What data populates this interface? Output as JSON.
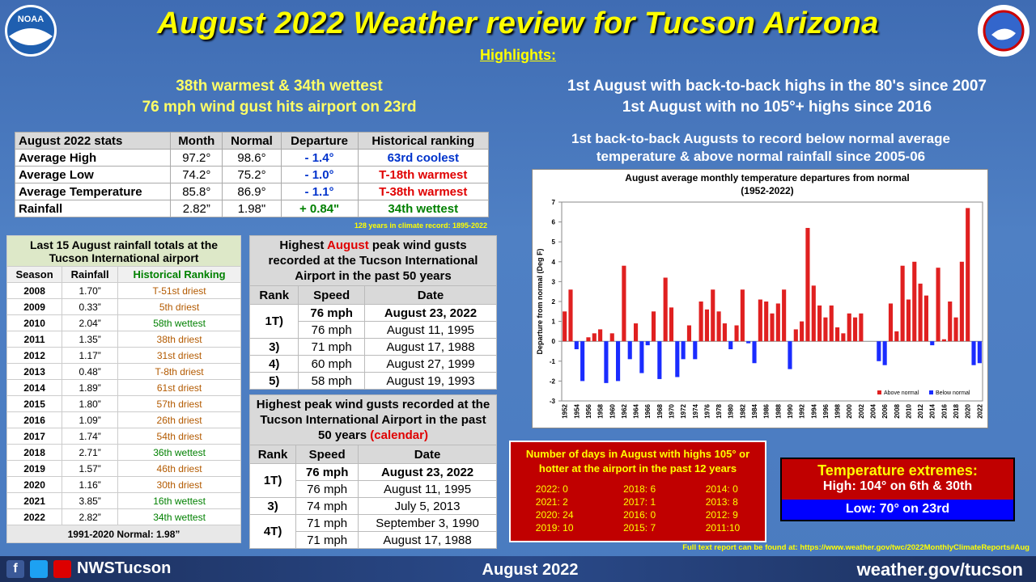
{
  "header": {
    "logo_left": "NOAA",
    "title": "August 2022 Weather review for Tucson Arizona",
    "subtitle": "Highlights:"
  },
  "highlights_left": [
    "38th warmest & 34th wettest",
    "76 mph wind gust hits airport on 23rd"
  ],
  "highlights_right": [
    "1st August with back-to-back highs in the 80's since 2007",
    "1st August with no 105°+ highs since 2016"
  ],
  "note": [
    "1st back-to-back Augusts to record below normal average",
    "temperature & above normal rainfall since 2005-06"
  ],
  "stats": {
    "header": [
      "August 2022 stats",
      "Month",
      "Normal",
      "Departure",
      "Historical ranking"
    ],
    "rows": [
      [
        "Average High",
        "97.2°",
        "98.6°",
        "- 1.4°",
        "63rd coolest"
      ],
      [
        "Average Low",
        "74.2°",
        "75.2°",
        "- 1.0°",
        "T-18th warmest"
      ],
      [
        "Average Temperature",
        "85.8°",
        "86.9°",
        "- 1.1°",
        "T-38th warmest"
      ],
      [
        "Rainfall",
        "2.82”",
        "1.98\"",
        "+ 0.84\"",
        "34th wettest"
      ]
    ],
    "footnote": "128 years in climate record: 1895-2022"
  },
  "rainfall": {
    "title": "Last 15 August rainfall totals at the Tucson International airport",
    "header": [
      "Season",
      "Rainfall",
      "Historical Ranking"
    ],
    "rows": [
      [
        "2008",
        "1.70”",
        "T-51st driest"
      ],
      [
        "2009",
        "0.33”",
        "5th driest"
      ],
      [
        "2010",
        "2.04”",
        "58th wettest"
      ],
      [
        "2011",
        "1.35”",
        "38th driest"
      ],
      [
        "2012",
        "1.17”",
        "31st driest"
      ],
      [
        "2013",
        "0.48”",
        "T-8th driest"
      ],
      [
        "2014",
        "1.89”",
        "61st driest"
      ],
      [
        "2015",
        "1.80”",
        "57th driest"
      ],
      [
        "2016",
        "1.09”",
        "26th driest"
      ],
      [
        "2017",
        "1.74”",
        "54th driest"
      ],
      [
        "2018",
        "2.71”",
        "36th wettest"
      ],
      [
        "2019",
        "1.57”",
        "46th driest"
      ],
      [
        "2020",
        "1.16”",
        "30th driest"
      ],
      [
        "2021",
        "3.85”",
        "16th wettest"
      ],
      [
        "2022",
        "2.82”",
        "34th wettest"
      ]
    ],
    "footer": "1991-2020  Normal: 1.98”"
  },
  "wind_august": {
    "title": [
      "Highest ",
      "August",
      " peak wind gusts recorded at the Tucson International Airport in the past 50 years"
    ],
    "header": [
      "Rank",
      "Speed",
      "Date"
    ],
    "groups": [
      {
        "rank": "1T)",
        "rows": [
          [
            "76 mph",
            "August 23, 2022"
          ],
          [
            "76 mph",
            "August 11, 1995"
          ]
        ]
      },
      {
        "rank": "3)",
        "rows": [
          [
            "71 mph",
            "August 17, 1988"
          ]
        ]
      },
      {
        "rank": "4)",
        "rows": [
          [
            "60 mph",
            "August 27, 1999"
          ]
        ]
      },
      {
        "rank": "5)",
        "rows": [
          [
            "58 mph",
            "August 19, 1993"
          ]
        ]
      }
    ]
  },
  "wind_calendar": {
    "title": [
      "Highest peak wind gusts recorded at the Tucson International Airport in the past 50 years ",
      "(calendar)"
    ],
    "header": [
      "Rank",
      "Speed",
      "Date"
    ],
    "groups": [
      {
        "rank": "1T)",
        "rows": [
          [
            "76 mph",
            "August 23, 2022"
          ],
          [
            "76 mph",
            "August 11, 1995"
          ]
        ]
      },
      {
        "rank": "3)",
        "rows": [
          [
            "74 mph",
            "July 5, 2013"
          ]
        ]
      },
      {
        "rank": "4T)",
        "rows": [
          [
            "71 mph",
            "September 3, 1990"
          ],
          [
            "71 mph",
            "August 17, 1988"
          ]
        ]
      }
    ]
  },
  "days_105": {
    "title": "Number of days in August with highs 105° or hotter at the airport in the past 12 years",
    "columns": [
      [
        "2022: 0",
        "2021: 2",
        "2020: 24",
        "2019: 10"
      ],
      [
        "2018: 6",
        "2017: 1",
        "2016: 0",
        "2015: 7"
      ],
      [
        "2014: 0",
        "2013: 8",
        "2012: 9",
        "2011:10"
      ]
    ]
  },
  "extremes": {
    "title": "Temperature extremes:",
    "high": "High: 104° on 6th & 30th",
    "low": "Low: 70° on 23rd"
  },
  "full_report": "Full text report can be found at: https://www.weather.gov/twc/2022MonthlyClimateReports#Aug",
  "footer": {
    "handle": "NWSTucson",
    "month": "August 2022",
    "site": "weather.gov/tucson"
  },
  "chart_data": {
    "type": "bar",
    "title": "August average monthly temperature departures from normal",
    "subtitle": "(1952-2022)",
    "ylabel": "Departure from normal (Deg F)",
    "categories": [
      "1952",
      null,
      "1954",
      null,
      "1956",
      null,
      "1958",
      null,
      "1960",
      null,
      "1962",
      null,
      "1964",
      null,
      "1966",
      null,
      "1968",
      null,
      "1970",
      null,
      "1972",
      null,
      "1974",
      null,
      "1976",
      null,
      "1978",
      null,
      "1980",
      null,
      "1982",
      null,
      "1984",
      null,
      "1986",
      null,
      "1988",
      null,
      "1990",
      null,
      "1992",
      null,
      "1994",
      null,
      "1996",
      null,
      "1998",
      null,
      "2000",
      null,
      "2002",
      null,
      "2004",
      null,
      "2006",
      null,
      "2008",
      null,
      "2010",
      null,
      "2012",
      null,
      "2014",
      null,
      "2016",
      null,
      "2018",
      null,
      "2020",
      null,
      "2022"
    ],
    "series": [
      {
        "name": "Above normal",
        "color": "#e02020",
        "values": [
          1.5,
          2.6,
          null,
          null,
          0.2,
          0.4,
          0.6,
          null,
          0.4,
          null,
          3.8,
          null,
          0.9,
          null,
          null,
          1.5,
          null,
          3.2,
          1.7,
          null,
          null,
          0.8,
          null,
          2.0,
          1.6,
          2.6,
          1.5,
          0.9,
          null,
          0.8,
          2.6,
          null,
          null,
          2.1,
          2.0,
          1.4,
          1.9,
          2.6,
          null,
          0.6,
          1.0,
          5.7,
          2.8,
          1.8,
          1.2,
          1.8,
          0.7,
          0.4,
          1.4,
          1.2,
          1.4,
          0,
          0,
          null,
          null,
          1.9,
          0.5,
          3.8,
          2.1,
          4.0,
          2.9,
          2.3,
          null,
          3.7,
          0.1,
          2.0,
          1.2,
          4.0,
          6.7,
          null,
          null
        ]
      },
      {
        "name": "Below normal",
        "color": "#1a2cff",
        "values": [
          null,
          null,
          -0.4,
          -2.0,
          null,
          null,
          null,
          -2.1,
          null,
          -2.0,
          null,
          -0.9,
          null,
          -1.6,
          -0.2,
          null,
          -1.9,
          null,
          null,
          -1.8,
          -0.9,
          null,
          -0.9,
          null,
          null,
          null,
          null,
          null,
          -0.4,
          null,
          null,
          -0.1,
          -1.1,
          null,
          null,
          null,
          null,
          null,
          -1.4,
          null,
          null,
          null,
          null,
          null,
          null,
          null,
          null,
          null,
          null,
          null,
          null,
          null,
          null,
          -1.0,
          -1.2,
          null,
          null,
          null,
          null,
          null,
          null,
          null,
          -0.2,
          null,
          null,
          null,
          null,
          null,
          null,
          -1.2,
          -1.1
        ]
      }
    ],
    "ylim": [
      -3,
      7
    ],
    "yticks": [
      -3,
      -2,
      -1,
      0,
      1,
      2,
      3,
      4,
      5,
      6,
      7
    ],
    "grid": false,
    "legend": "lower right"
  }
}
